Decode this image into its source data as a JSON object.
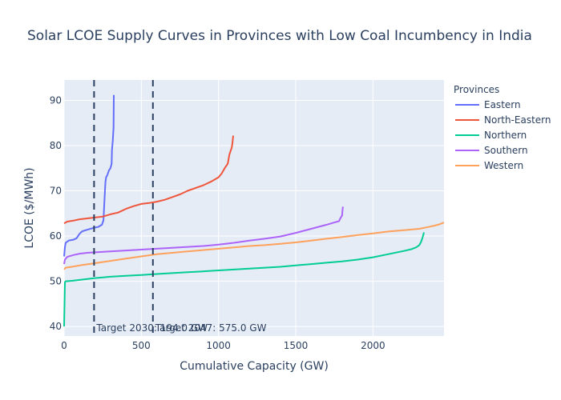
{
  "chart_data": {
    "type": "line",
    "title": "Solar LCOE Supply Curves in Provinces with Low Coal Incumbency in India",
    "xlabel": "Cumulative Capacity (GW)",
    "ylabel": "LCOE ($/MWh)",
    "xlim": [
      0,
      2460
    ],
    "ylim": [
      37.9,
      94.5
    ],
    "xticks": [
      0,
      500,
      1000,
      1500,
      2000
    ],
    "yticks": [
      40,
      50,
      60,
      70,
      80,
      90
    ],
    "grid": true,
    "legend": {
      "title": "Provinces",
      "position": "right"
    },
    "series": [
      {
        "name": "Eastern",
        "color": "#636efa",
        "x": [
          0,
          5,
          10,
          30,
          60,
          80,
          100,
          115,
          130,
          160,
          190,
          220,
          245,
          255,
          265,
          268,
          272,
          280,
          290,
          300,
          308,
          310,
          315,
          320,
          322
        ],
        "y": [
          55.5,
          57.5,
          58.5,
          59.0,
          59.2,
          59.5,
          60.5,
          61.0,
          61.2,
          61.5,
          61.8,
          62.0,
          62.5,
          63.5,
          70.5,
          72.0,
          73.0,
          73.5,
          74.5,
          75.0,
          76.0,
          79.0,
          81.0,
          84.0,
          91.2
        ]
      },
      {
        "name": "North-Eastern",
        "color": "#ef553b",
        "x": [
          0,
          20,
          60,
          100,
          150,
          200,
          250,
          300,
          350,
          400,
          450,
          500,
          550,
          600,
          650,
          700,
          750,
          800,
          850,
          900,
          950,
          1000,
          1020,
          1040,
          1060,
          1070,
          1080,
          1085,
          1090,
          1095
        ],
        "y": [
          62.8,
          63.2,
          63.4,
          63.7,
          63.9,
          64.1,
          64.3,
          64.8,
          65.2,
          66.0,
          66.6,
          67.1,
          67.3,
          67.6,
          68.0,
          68.6,
          69.2,
          70.0,
          70.6,
          71.2,
          72.0,
          73.0,
          73.8,
          75.0,
          76.0,
          78.0,
          79.0,
          79.5,
          80.5,
          82.2
        ]
      },
      {
        "name": "Northern",
        "color": "#00cc96",
        "x": [
          0,
          5,
          10,
          50,
          100,
          200,
          300,
          400,
          500,
          600,
          700,
          800,
          900,
          1000,
          1100,
          1200,
          1300,
          1400,
          1500,
          1600,
          1700,
          1800,
          1900,
          2000,
          2100,
          2200,
          2250,
          2280,
          2300,
          2310,
          2320,
          2330
        ],
        "y": [
          40.0,
          49.8,
          50.0,
          50.1,
          50.3,
          50.7,
          51.0,
          51.2,
          51.4,
          51.6,
          51.8,
          52.0,
          52.2,
          52.4,
          52.6,
          52.8,
          53.0,
          53.2,
          53.5,
          53.8,
          54.1,
          54.4,
          54.8,
          55.3,
          56.0,
          56.7,
          57.1,
          57.5,
          58.0,
          58.6,
          59.5,
          60.8
        ]
      },
      {
        "name": "Southern",
        "color": "#ab63fa",
        "x": [
          0,
          5,
          20,
          60,
          100,
          150,
          200,
          300,
          400,
          500,
          600,
          700,
          800,
          900,
          1000,
          1100,
          1200,
          1300,
          1400,
          1500,
          1600,
          1700,
          1750,
          1780,
          1790,
          1800,
          1805
        ],
        "y": [
          53.8,
          54.8,
          55.4,
          55.8,
          56.1,
          56.3,
          56.4,
          56.6,
          56.8,
          57.0,
          57.2,
          57.4,
          57.6,
          57.8,
          58.1,
          58.5,
          59.0,
          59.4,
          59.9,
          60.7,
          61.6,
          62.5,
          63.0,
          63.3,
          64.0,
          64.5,
          66.5
        ]
      },
      {
        "name": "Western",
        "color": "#ffa15a",
        "x": [
          0,
          10,
          50,
          100,
          200,
          300,
          400,
          500,
          600,
          700,
          800,
          900,
          1000,
          1100,
          1200,
          1300,
          1400,
          1500,
          1600,
          1700,
          1800,
          1900,
          2000,
          2100,
          2200,
          2300,
          2360,
          2400,
          2430,
          2460
        ],
        "y": [
          52.6,
          53.0,
          53.2,
          53.5,
          54.0,
          54.5,
          55.0,
          55.5,
          56.0,
          56.3,
          56.6,
          56.9,
          57.2,
          57.5,
          57.8,
          58.0,
          58.3,
          58.6,
          59.0,
          59.4,
          59.8,
          60.2,
          60.6,
          61.0,
          61.3,
          61.6,
          62.0,
          62.3,
          62.6,
          63.0
        ]
      }
    ],
    "vlines": [
      {
        "x": 194,
        "label": "Target 2030: 194.0 GW",
        "color": "#2a3f5f"
      },
      {
        "x": 575,
        "label": "Target 2047: 575.0 GW",
        "color": "#2a3f5f"
      }
    ]
  }
}
